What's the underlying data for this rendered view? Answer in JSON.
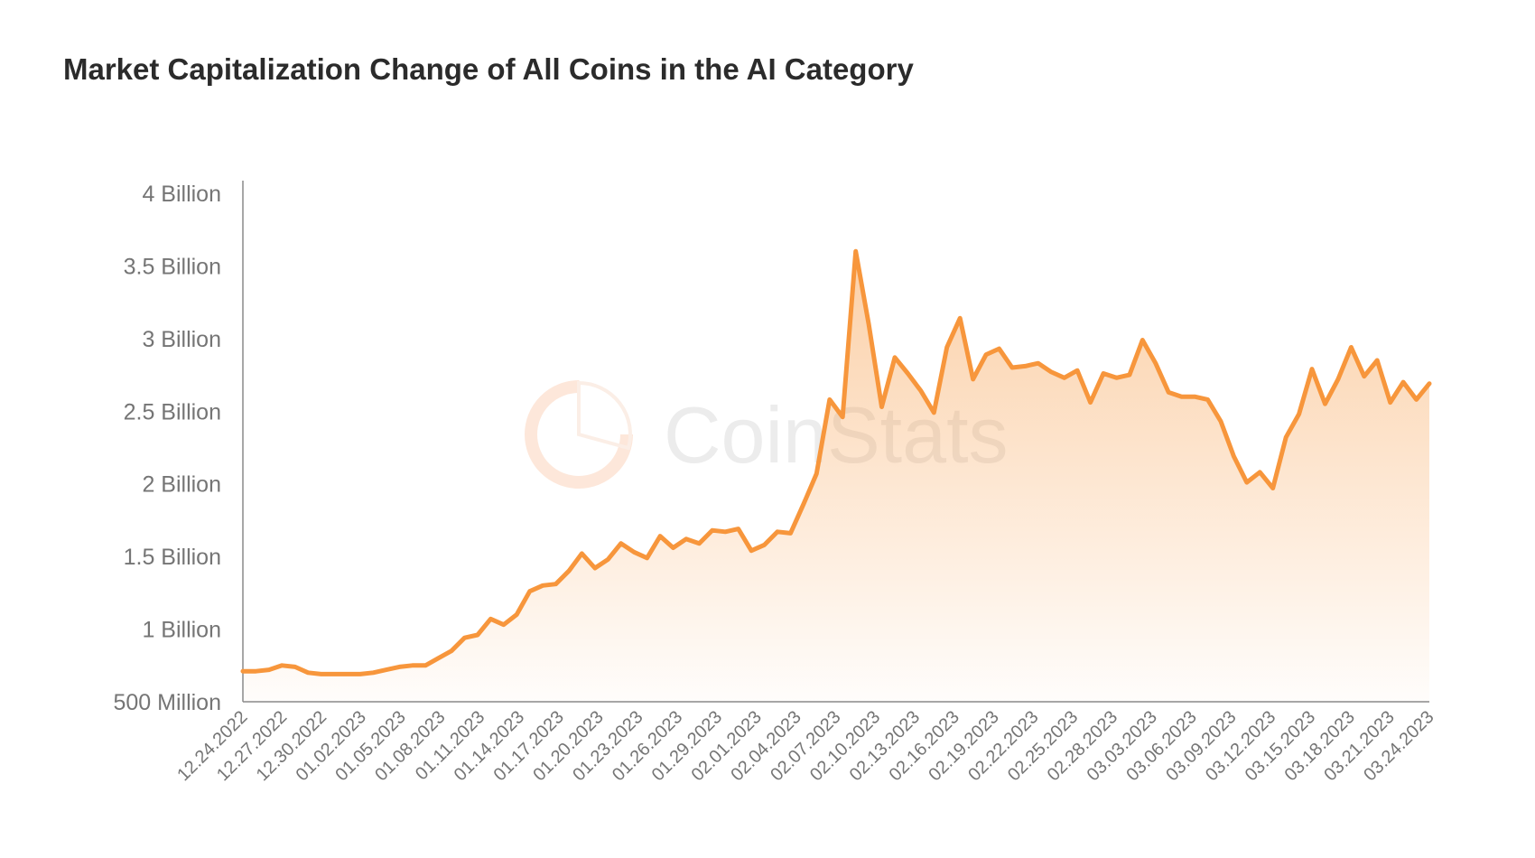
{
  "chart_data": {
    "type": "area",
    "title": "Market Capitalization Change of All Coins in the AI Category",
    "xlabel": "",
    "ylabel": "",
    "ylim": [
      500000000,
      4000000000
    ],
    "y_ticks": [
      {
        "value": 500000000,
        "label": "500 Million"
      },
      {
        "value": 1000000000,
        "label": "1 Billion"
      },
      {
        "value": 1500000000,
        "label": "1.5 Billion"
      },
      {
        "value": 2000000000,
        "label": "2 Billion"
      },
      {
        "value": 2500000000,
        "label": "2.5 Billion"
      },
      {
        "value": 3000000000,
        "label": "3 Billion"
      },
      {
        "value": 3500000000,
        "label": "3.5 Billion"
      },
      {
        "value": 4000000000,
        "label": "4 Billion"
      }
    ],
    "x_tick_labels": [
      "12.24.2022",
      "12.27.2022",
      "12.30.2022",
      "01.02.2023",
      "01.05.2023",
      "01.08.2023",
      "01.11.2023",
      "01.14.2023",
      "01.17.2023",
      "01.20.2023",
      "01.23.2023",
      "01.26.2023",
      "01.29.2023",
      "02.01.2023",
      "02.04.2023",
      "02.07.2023",
      "02.10.2023",
      "02.13.2023",
      "02.16.2023",
      "02.19.2023",
      "02.22.2023",
      "02.25.2023",
      "02.28.2023",
      "03.03.2023",
      "03.06.2023",
      "03.09.2023",
      "03.12.2023",
      "03.15.2023",
      "03.18.2023",
      "03.21.2023",
      "03.24.2023"
    ],
    "grid": false,
    "legend": "none",
    "series": [
      {
        "color": "#f7963c",
        "x_start": "12.24.2022",
        "x_end": "03.24.2023",
        "values": [
          710000000,
          710000000,
          720000000,
          750000000,
          740000000,
          700000000,
          690000000,
          690000000,
          690000000,
          690000000,
          700000000,
          720000000,
          740000000,
          750000000,
          750000000,
          800000000,
          850000000,
          940000000,
          960000000,
          1070000000,
          1030000000,
          1100000000,
          1260000000,
          1300000000,
          1310000000,
          1400000000,
          1520000000,
          1420000000,
          1480000000,
          1590000000,
          1530000000,
          1490000000,
          1640000000,
          1560000000,
          1620000000,
          1590000000,
          1680000000,
          1670000000,
          1690000000,
          1540000000,
          1580000000,
          1670000000,
          1660000000,
          1860000000,
          2070000000,
          2580000000,
          2460000000,
          3600000000,
          3100000000,
          2530000000,
          2870000000,
          2760000000,
          2640000000,
          2490000000,
          2940000000,
          3140000000,
          2720000000,
          2890000000,
          2930000000,
          2800000000,
          2810000000,
          2830000000,
          2770000000,
          2730000000,
          2780000000,
          2560000000,
          2760000000,
          2730000000,
          2750000000,
          2990000000,
          2830000000,
          2630000000,
          2600000000,
          2600000000,
          2580000000,
          2430000000,
          2190000000,
          2010000000,
          2080000000,
          1970000000,
          2320000000,
          2480000000,
          2790000000,
          2550000000,
          2720000000,
          2940000000,
          2740000000,
          2850000000,
          2560000000,
          2700000000,
          2580000000,
          2690000000
        ]
      }
    ]
  },
  "watermark": {
    "text": "CoinStats",
    "icon": "coinstats-logo-icon"
  }
}
